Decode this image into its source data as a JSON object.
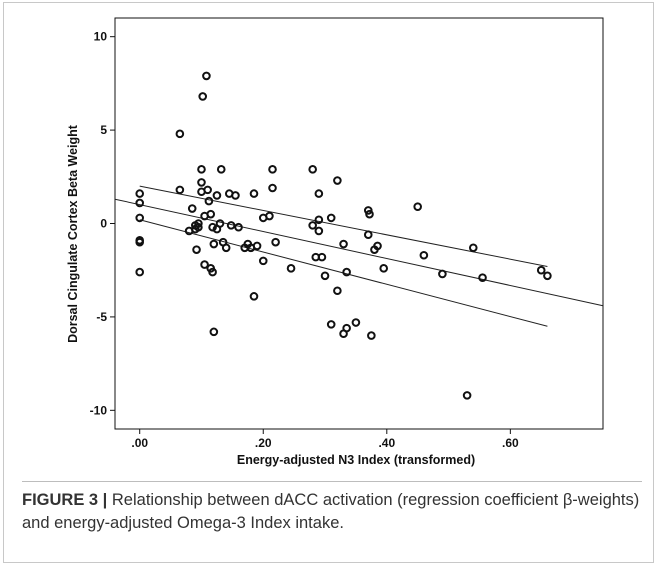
{
  "chart_data": {
    "type": "scatter",
    "title": "",
    "xlabel": "Energy-adjusted N3 Index (transformed)",
    "ylabel": "Dorsal Cingulate Cortex Beta Weight",
    "xlim": [
      -0.04,
      0.75
    ],
    "ylim": [
      -11,
      11
    ],
    "x_ticks": [
      {
        "value": 0.0,
        "label": ".00"
      },
      {
        "value": 0.2,
        "label": ".20"
      },
      {
        "value": 0.4,
        "label": ".40"
      },
      {
        "value": 0.6,
        "label": ".60"
      }
    ],
    "y_ticks": [
      {
        "value": 10,
        "label": "10"
      },
      {
        "value": 5,
        "label": "5"
      },
      {
        "value": 0,
        "label": "0"
      },
      {
        "value": -5,
        "label": "-5"
      },
      {
        "value": -10,
        "label": "-10"
      }
    ],
    "grid": false,
    "points": [
      [
        0.0,
        1.6
      ],
      [
        0.0,
        1.1
      ],
      [
        0.0,
        0.3
      ],
      [
        0.0,
        -0.9
      ],
      [
        0.0,
        -1.0
      ],
      [
        0.0,
        -2.6
      ],
      [
        0.065,
        4.8
      ],
      [
        0.065,
        1.8
      ],
      [
        0.08,
        -0.4
      ],
      [
        0.085,
        0.8
      ],
      [
        0.09,
        -0.3
      ],
      [
        0.09,
        -0.1
      ],
      [
        0.092,
        -1.4
      ],
      [
        0.095,
        0.0
      ],
      [
        0.095,
        -0.2
      ],
      [
        0.1,
        2.9
      ],
      [
        0.1,
        2.2
      ],
      [
        0.1,
        1.7
      ],
      [
        0.102,
        6.8
      ],
      [
        0.105,
        0.4
      ],
      [
        0.105,
        -2.2
      ],
      [
        0.108,
        7.9
      ],
      [
        0.11,
        1.8
      ],
      [
        0.112,
        1.2
      ],
      [
        0.115,
        0.5
      ],
      [
        0.115,
        -2.4
      ],
      [
        0.118,
        -2.6
      ],
      [
        0.118,
        -0.2
      ],
      [
        0.12,
        -5.8
      ],
      [
        0.12,
        -1.1
      ],
      [
        0.125,
        1.5
      ],
      [
        0.125,
        -0.3
      ],
      [
        0.13,
        0.0
      ],
      [
        0.132,
        2.9
      ],
      [
        0.135,
        -1.0
      ],
      [
        0.14,
        -1.3
      ],
      [
        0.145,
        1.6
      ],
      [
        0.148,
        -0.1
      ],
      [
        0.155,
        1.5
      ],
      [
        0.16,
        -0.2
      ],
      [
        0.17,
        -1.3
      ],
      [
        0.175,
        -1.1
      ],
      [
        0.18,
        -1.3
      ],
      [
        0.185,
        1.6
      ],
      [
        0.185,
        -3.9
      ],
      [
        0.19,
        -1.2
      ],
      [
        0.2,
        -2.0
      ],
      [
        0.2,
        0.3
      ],
      [
        0.21,
        0.4
      ],
      [
        0.215,
        2.9
      ],
      [
        0.215,
        1.9
      ],
      [
        0.22,
        -1.0
      ],
      [
        0.245,
        -2.4
      ],
      [
        0.28,
        2.9
      ],
      [
        0.28,
        -0.1
      ],
      [
        0.285,
        -1.8
      ],
      [
        0.29,
        0.2
      ],
      [
        0.29,
        1.6
      ],
      [
        0.29,
        -0.4
      ],
      [
        0.295,
        -1.8
      ],
      [
        0.3,
        -2.8
      ],
      [
        0.31,
        -5.4
      ],
      [
        0.31,
        0.3
      ],
      [
        0.32,
        -3.6
      ],
      [
        0.32,
        2.3
      ],
      [
        0.33,
        -5.9
      ],
      [
        0.33,
        -1.1
      ],
      [
        0.335,
        -2.6
      ],
      [
        0.335,
        -5.6
      ],
      [
        0.35,
        -5.3
      ],
      [
        0.37,
        0.7
      ],
      [
        0.37,
        -0.6
      ],
      [
        0.372,
        0.5
      ],
      [
        0.375,
        -6.0
      ],
      [
        0.38,
        -1.4
      ],
      [
        0.385,
        -1.2
      ],
      [
        0.395,
        -2.4
      ],
      [
        0.45,
        0.9
      ],
      [
        0.46,
        -1.7
      ],
      [
        0.49,
        -2.7
      ],
      [
        0.53,
        -9.2
      ],
      [
        0.54,
        -1.3
      ],
      [
        0.555,
        -2.9
      ],
      [
        0.65,
        -2.5
      ],
      [
        0.66,
        -2.8
      ]
    ],
    "fit_lines": [
      {
        "x": [
          -0.04,
          0.75
        ],
        "y": [
          1.3,
          -4.4
        ]
      },
      {
        "x": [
          0.0,
          0.66
        ],
        "y": [
          2.0,
          -2.3
        ]
      },
      {
        "x": [
          0.0,
          0.66
        ],
        "y": [
          0.2,
          -5.5
        ]
      }
    ]
  },
  "caption": {
    "label": "FIGURE 3 |",
    "text": " Relationship between dACC activation (regression coefficient β-weights) and energy-adjusted Omega-3 Index intake."
  }
}
